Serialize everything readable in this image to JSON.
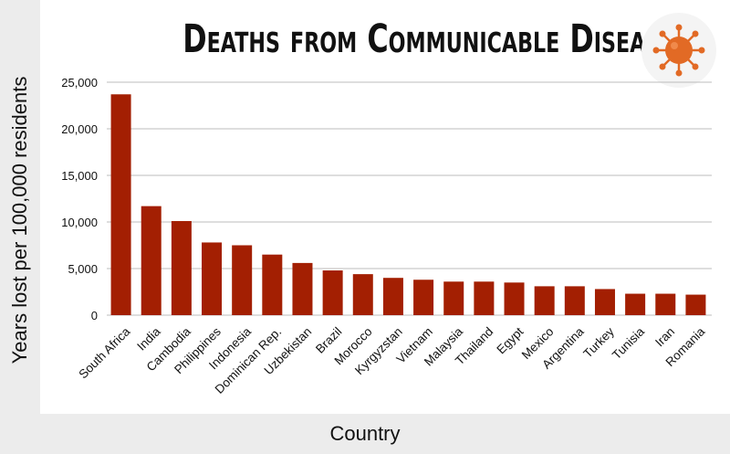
{
  "chart_data": {
    "type": "bar",
    "title": "Deaths from Communicable Diseases",
    "xlabel": "Country",
    "ylabel": "Years lost per 100,000 residents",
    "ylim": [
      0,
      25000
    ],
    "yticks": [
      "0",
      "5,000",
      "10,000",
      "15,000",
      "20,000",
      "25,000"
    ],
    "grid": true,
    "bar_color": "#a31f02",
    "categories": [
      "South Africa",
      "India",
      "Cambodia",
      "Philippines",
      "Indonesia",
      "Dominican Rep.",
      "Uzbekistan",
      "Brazil",
      "Morocco",
      "Kyrgyzstan",
      "Vietnam",
      "Malaysia",
      "Thailand",
      "Egypt",
      "Mexico",
      "Argentina",
      "Turkey",
      "Tunisia",
      "Iran",
      "Romania"
    ],
    "values": [
      23700,
      11700,
      10100,
      7800,
      7500,
      6500,
      5600,
      4800,
      4400,
      4000,
      3800,
      3600,
      3600,
      3500,
      3100,
      3100,
      2800,
      2300,
      2300,
      2200
    ]
  },
  "icon": "virus-icon",
  "colors": {
    "band": "#ececec",
    "grid": "#bdbdbd",
    "icon_bg": "#f4f4f4",
    "icon_fill": "#e26a25"
  }
}
